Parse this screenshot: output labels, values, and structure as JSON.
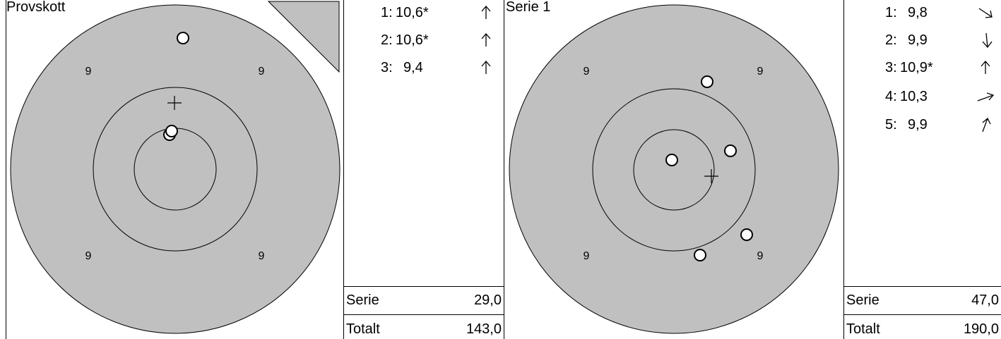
{
  "panels": [
    {
      "title": "Provskott",
      "ring_labels": [
        "9",
        "9",
        "9",
        "9"
      ],
      "shots": [
        {
          "num": "1:",
          "score": "10,6*",
          "arrow": "up"
        },
        {
          "num": "2:",
          "score": "10,6*",
          "arrow": "up"
        },
        {
          "num": "3:",
          "score": "9,4",
          "arrow": "up"
        }
      ],
      "serie_label": "Serie",
      "serie_value": "29,0",
      "totalt_label": "Totalt",
      "totalt_value": "143,0"
    },
    {
      "title": "Serie 1",
      "ring_labels": [
        "9",
        "9",
        "9",
        "9"
      ],
      "shots": [
        {
          "num": "1:",
          "score": "9,8",
          "arrow": "down-right"
        },
        {
          "num": "2:",
          "score": "9,9",
          "arrow": "down"
        },
        {
          "num": "3:",
          "score": "10,9*",
          "arrow": "up"
        },
        {
          "num": "4:",
          "score": "10,3",
          "arrow": "right"
        },
        {
          "num": "5:",
          "score": "9,9",
          "arrow": "up-right"
        }
      ],
      "serie_label": "Serie",
      "serie_value": "47,0",
      "totalt_label": "Totalt",
      "totalt_value": "190,0"
    }
  ],
  "colors": {
    "target_fill": "#c0c0c0",
    "line": "#000000",
    "shot_fill": "#ffffff",
    "background": "#ffffff"
  },
  "icons": {
    "corner_marker": "corner-triangle-icon",
    "center_mark": "crosshair-icon",
    "shot_mark": "shot-hole-icon"
  }
}
